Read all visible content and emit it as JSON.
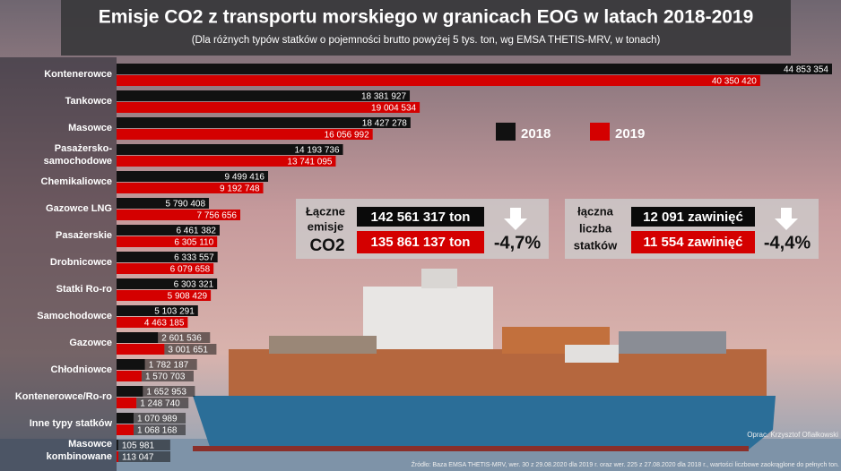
{
  "chart_data": {
    "type": "hbar-grouped",
    "title": "Emisje CO2 z transportu morskiego w granicach EOG w latach 2018-2019",
    "subtitle": "(Dla różnych typów statków o pojemności brutto powyżej 5 tys. ton, wg EMSA THETIS-MRV, w tonach)",
    "categories": [
      "Kontenerowce",
      "Tankowce",
      "Masowce",
      "Pasażersko-\nsamochodowe",
      "Chemikaliowce",
      "Gazowce LNG",
      "Pasażerskie",
      "Drobnicowce",
      "Statki Ro-ro",
      "Samochodowce",
      "Gazowce",
      "Chłodniowce",
      "Kontenerowce/Ro-ro",
      "Inne typy statków",
      "Masowce\nkombinowane"
    ],
    "series": [
      {
        "name": "2018",
        "color": "#111111",
        "values": [
          44853354,
          18381927,
          18427278,
          14193736,
          9499416,
          5790408,
          6461382,
          6333557,
          6303321,
          5103291,
          2601536,
          1782187,
          1652953,
          1070989,
          105981
        ],
        "value_labels": [
          "44 853 354",
          "18 381 927",
          "18 427 278",
          "14 193 736",
          "9 499 416",
          "5 790 408",
          "6 461 382",
          "6 333 557",
          "6 303 321",
          "5 103 291",
          "2 601 536",
          "1 782 187",
          "1 652 953",
          "1 070 989",
          "105 981"
        ]
      },
      {
        "name": "2019",
        "color": "#d40000",
        "values": [
          40350420,
          19004534,
          16056992,
          13741095,
          9192748,
          7756656,
          6305110,
          6079658,
          5908429,
          4463185,
          3001651,
          1570703,
          1248740,
          1068168,
          113047
        ],
        "value_labels": [
          "40 350 420",
          "19 004 534",
          "16 056 992",
          "13 741 095",
          "9 192 748",
          "7 756 656",
          "6 305 110",
          "6 079 658",
          "5 908 429",
          "4 463 185",
          "3 001 651",
          "1 570 703",
          "1 248 740",
          "1 068 168",
          "113 047"
        ]
      }
    ]
  },
  "summaries": [
    {
      "label_lines": [
        "Łączne",
        "emisje",
        "CO2"
      ],
      "value_2018": "142 561 317 ton",
      "value_2019": "135 861 137 ton",
      "change": "-4,7%"
    },
    {
      "label_lines": [
        "łączna",
        "liczba",
        "statków"
      ],
      "value_2018": "12 091 zawinięć",
      "value_2019": "11 554 zawinięć",
      "change": "-4,4%"
    }
  ],
  "author": "Oprac. Krzysztof Ofiałkowski",
  "source": "Źródło: Baza EMSA THETIS-MRV, wer. 30 z 29.08.2020 dla 2019 r. oraz wer. 225 z 27.08.2020 dla 2018 r., wartości liczbowe zaokrąglone do pełnych ton."
}
